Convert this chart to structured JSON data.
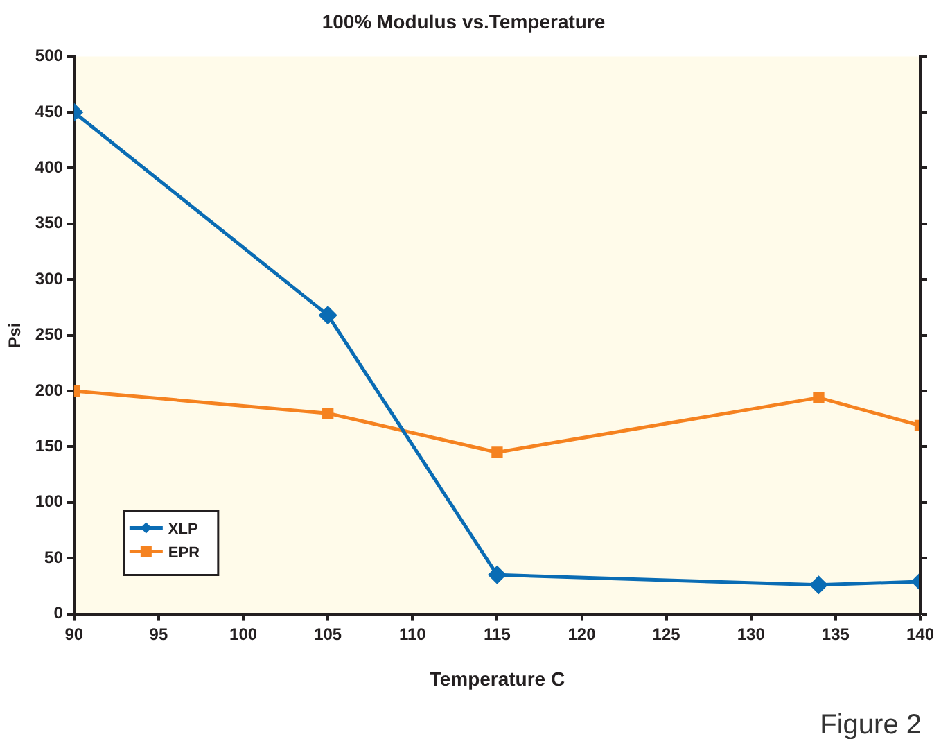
{
  "chart_data": {
    "type": "line",
    "title": "100% Modulus vs.Temperature",
    "xlabel": "Temperature C",
    "ylabel": "Psi",
    "xlim": [
      90,
      140
    ],
    "xticks": [
      90,
      95,
      100,
      105,
      110,
      115,
      120,
      125,
      130,
      135,
      140
    ],
    "ylim": [
      0,
      500
    ],
    "yticks": [
      0,
      50,
      100,
      150,
      200,
      250,
      300,
      350,
      400,
      450,
      500
    ],
    "grid": false,
    "legend": "bottom left",
    "line_style": "solid",
    "series": [
      {
        "name": "XLP",
        "color": "#0a6cb4",
        "marker": "diamond",
        "x": [
          90,
          105,
          115,
          134,
          140
        ],
        "values": [
          450,
          268,
          35,
          26,
          29
        ]
      },
      {
        "name": "EPR",
        "color": "#f58220",
        "marker": "square",
        "x": [
          90,
          105,
          115,
          134,
          140
        ],
        "values": [
          200,
          180,
          145,
          194,
          169
        ]
      }
    ],
    "annotations": [
      "Figure 2"
    ]
  }
}
